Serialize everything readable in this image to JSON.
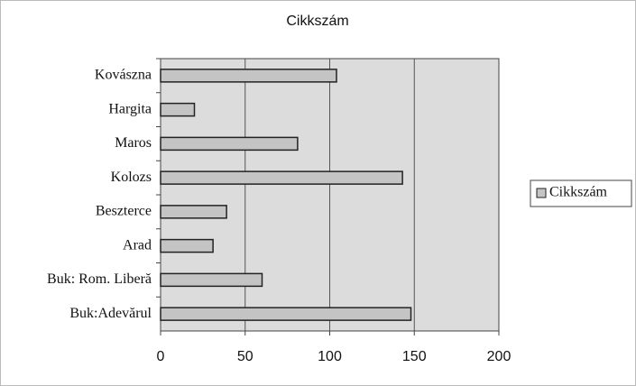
{
  "chart_data": {
    "type": "bar",
    "orientation": "horizontal",
    "title": "Cikkszám",
    "categories": [
      "Kovászna",
      "Hargita",
      "Maros",
      "Kolozs",
      "Beszterce",
      "Arad",
      "Buk: Rom. Liberă",
      "Buk:Adevărul"
    ],
    "series": [
      {
        "name": "Cikkszám",
        "color": "#c4c4c4",
        "values": [
          104,
          20,
          81,
          143,
          39,
          31,
          60,
          148
        ]
      }
    ],
    "xlim": [
      0,
      200
    ],
    "xticks": [
      0,
      50,
      100,
      150,
      200
    ],
    "grid": true,
    "legend": "right"
  }
}
